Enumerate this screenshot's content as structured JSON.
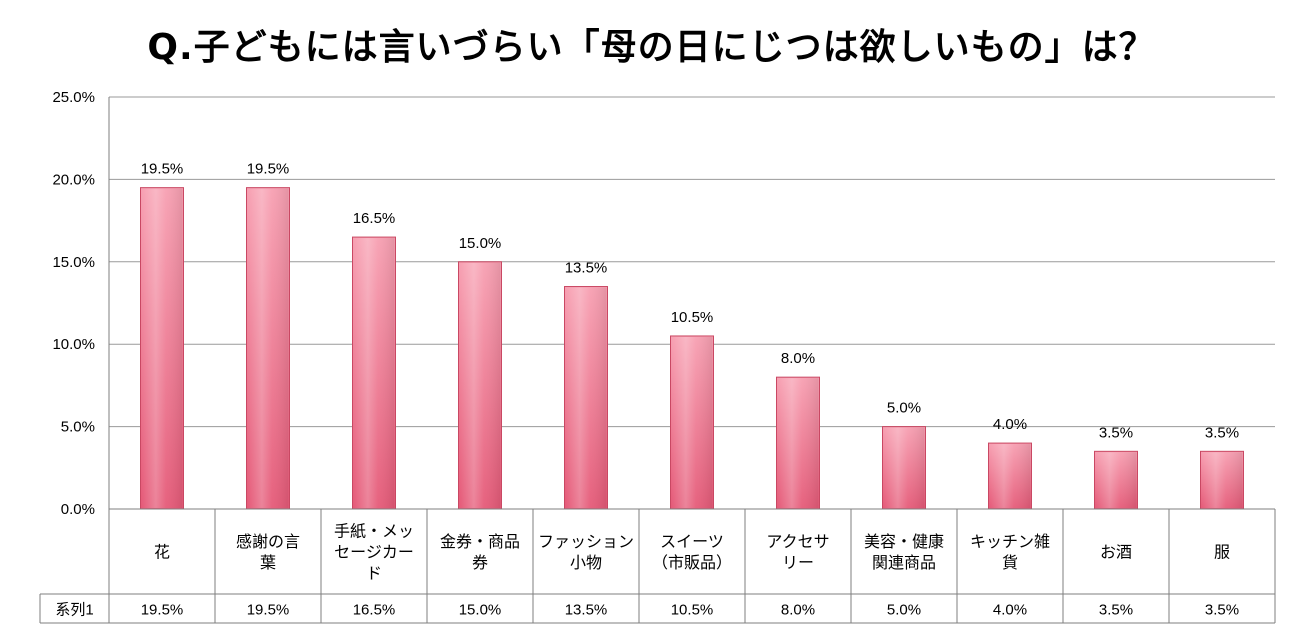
{
  "chart_data": {
    "type": "bar",
    "title": "Q.子どもには言いづらい「母の日にじつは欲しいもの」は？",
    "categories": [
      [
        "花"
      ],
      [
        "感謝の言",
        "葉"
      ],
      [
        "手紙・メッ",
        "セージカー",
        "ド"
      ],
      [
        "金券・商品",
        "券"
      ],
      [
        "ファッション",
        "小物"
      ],
      [
        "スイーツ",
        "（市販品）"
      ],
      [
        "アクセサ",
        "リー"
      ],
      [
        "美容・健康",
        "関連商品"
      ],
      [
        "キッチン雑",
        "貨"
      ],
      [
        "お酒"
      ],
      [
        "服"
      ]
    ],
    "series": [
      {
        "name": "系列1",
        "values": [
          19.5,
          19.5,
          16.5,
          15.0,
          13.5,
          10.5,
          8.0,
          5.0,
          4.0,
          3.5,
          3.5
        ],
        "labels": [
          "19.5%",
          "19.5%",
          "16.5%",
          "15.0%",
          "13.5%",
          "10.5%",
          "8.0%",
          "5.0%",
          "4.0%",
          "3.5%",
          "3.5%"
        ]
      }
    ],
    "yticks": [
      "0.0%",
      "5.0%",
      "10.0%",
      "15.0%",
      "20.0%",
      "25.0%"
    ],
    "ylim": [
      0,
      25
    ],
    "grid": true,
    "colors": {
      "bar_top": "#f7a0b2",
      "bar_bottom": "#e55a78",
      "bar_edge": "#c94863",
      "grid": "#9a9a9a"
    }
  }
}
